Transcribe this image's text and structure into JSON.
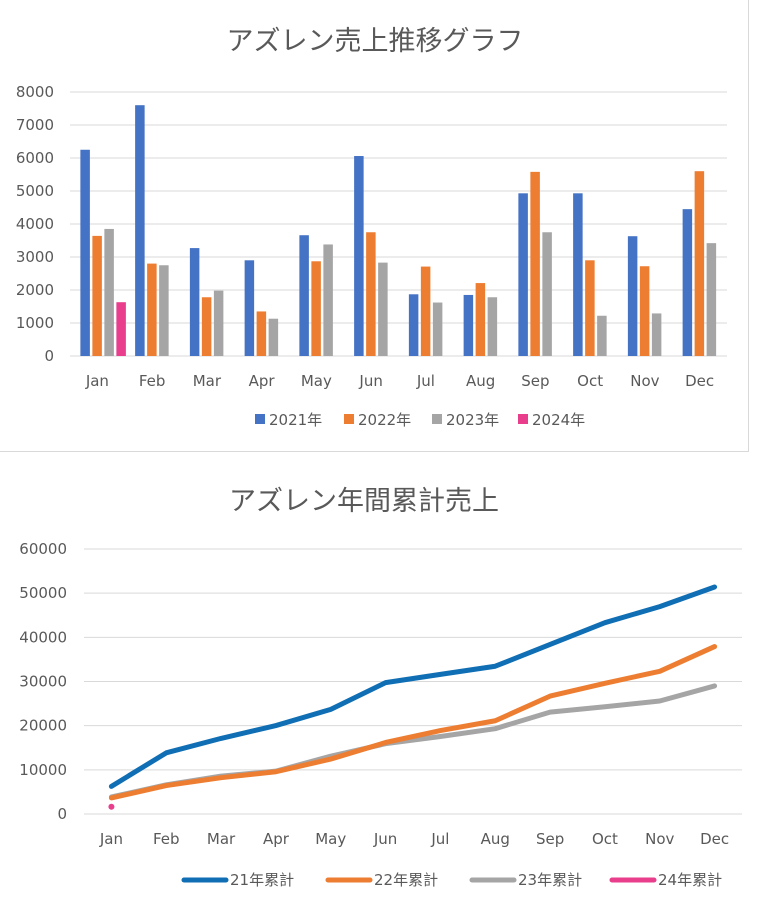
{
  "chart_data": [
    {
      "type": "bar",
      "title": "アズレン売上推移グラフ",
      "xlabel": "",
      "ylabel": "",
      "categories": [
        "Jan",
        "Feb",
        "Mar",
        "Apr",
        "May",
        "Jun",
        "Jul",
        "Aug",
        "Sep",
        "Oct",
        "Nov",
        "Dec"
      ],
      "yticks": [
        "0",
        "1000",
        "2000",
        "3000",
        "4000",
        "5000",
        "6000",
        "7000",
        "8000"
      ],
      "ylim": [
        0,
        8000
      ],
      "grid": true,
      "legend_position": "bottom",
      "series": [
        {
          "name": "2021年",
          "color": "#4472c4",
          "values": [
            6250,
            7600,
            3270,
            2900,
            3660,
            6060,
            1870,
            1850,
            4930,
            4930,
            3630,
            4450
          ]
        },
        {
          "name": "2022年",
          "color": "#ed7d31",
          "values": [
            3640,
            2800,
            1780,
            1350,
            2870,
            3750,
            2710,
            2210,
            5580,
            2900,
            2720,
            5600
          ]
        },
        {
          "name": "2023年",
          "color": "#a5a5a5",
          "values": [
            3850,
            2750,
            1980,
            1130,
            3380,
            2830,
            1620,
            1780,
            3750,
            1220,
            1290,
            3420
          ]
        },
        {
          "name": "2024年",
          "color": "#e83e8c",
          "values": [
            1630,
            null,
            null,
            null,
            null,
            null,
            null,
            null,
            null,
            null,
            null,
            null
          ]
        }
      ]
    },
    {
      "type": "line",
      "title": "アズレン年間累計売上",
      "xlabel": "",
      "ylabel": "",
      "categories": [
        "Jan",
        "Feb",
        "Mar",
        "Apr",
        "May",
        "Jun",
        "Jul",
        "Aug",
        "Sep",
        "Oct",
        "Nov",
        "Dec"
      ],
      "yticks": [
        "0",
        "10000",
        "20000",
        "30000",
        "40000",
        "50000",
        "60000"
      ],
      "ylim": [
        0,
        60000
      ],
      "grid": true,
      "legend_position": "bottom",
      "series": [
        {
          "name": "21年累計",
          "color": "#0f6eb4",
          "values": [
            6250,
            13850,
            17120,
            20020,
            23680,
            29740,
            31610,
            33460,
            38390,
            43320,
            46950,
            51400
          ]
        },
        {
          "name": "22年累計",
          "color": "#ed7d31",
          "values": [
            3640,
            6440,
            8220,
            9570,
            12440,
            16190,
            18900,
            21110,
            26690,
            29590,
            32310,
            37910
          ]
        },
        {
          "name": "23年累計",
          "color": "#a5a5a5",
          "values": [
            3850,
            6600,
            8580,
            9710,
            13090,
            15920,
            17540,
            19320,
            23070,
            24290,
            25580,
            29000
          ]
        },
        {
          "name": "24年累計",
          "color": "#e83e8c",
          "values": [
            1630,
            null,
            null,
            null,
            null,
            null,
            null,
            null,
            null,
            null,
            null,
            null
          ]
        }
      ]
    }
  ]
}
